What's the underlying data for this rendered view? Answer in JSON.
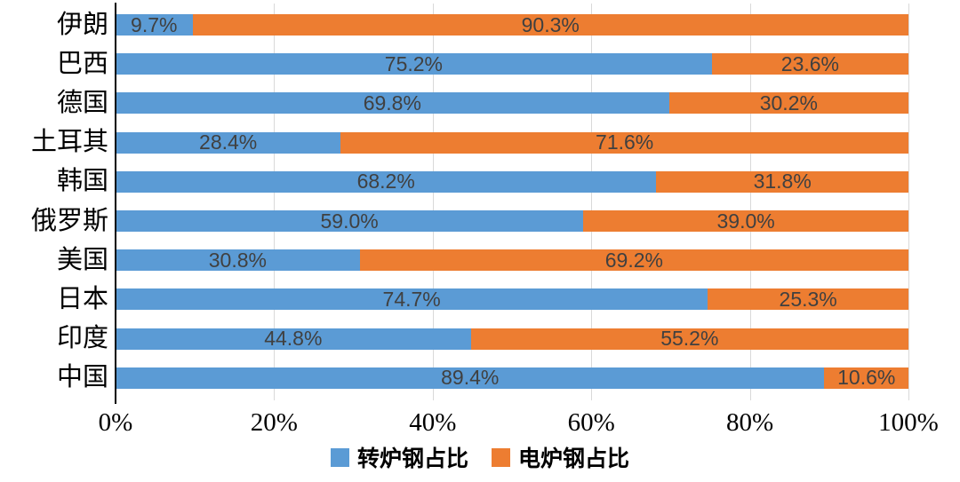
{
  "colors": {
    "converter_blue": "#5B9BD5",
    "electric_orange": "#ED7D31",
    "data_label": "#404040",
    "gridline": "#D9D9D9",
    "axis_line": "#000000"
  },
  "chart_data": {
    "type": "bar",
    "orientation": "horizontal",
    "stacked": true,
    "title": "",
    "xlabel": "",
    "ylabel": "",
    "xlim": [
      0,
      100
    ],
    "x_ticks": [
      "0%",
      "20%",
      "40%",
      "60%",
      "80%",
      "100%"
    ],
    "grid": true,
    "legend_position": "bottom",
    "categories": [
      "伊朗",
      "巴西",
      "德国",
      "土耳其",
      "韩国",
      "俄罗斯",
      "美国",
      "日本",
      "印度",
      "中国"
    ],
    "series": [
      {
        "name": "转炉钢占比",
        "color": "#5B9BD5",
        "values": [
          9.7,
          75.2,
          69.8,
          28.4,
          68.2,
          59.0,
          30.8,
          74.7,
          44.8,
          89.4
        ],
        "labels": [
          "9.7%",
          "75.2%",
          "69.8%",
          "28.4%",
          "68.2%",
          "59.0%",
          "30.8%",
          "74.7%",
          "44.8%",
          "89.4%"
        ]
      },
      {
        "name": "电炉钢占比",
        "color": "#ED7D31",
        "values": [
          90.3,
          23.6,
          30.2,
          71.6,
          31.8,
          39.0,
          69.2,
          25.3,
          55.2,
          10.6
        ],
        "labels": [
          "90.3%",
          "23.6%",
          "30.2%",
          "71.6%",
          "31.8%",
          "39.0%",
          "69.2%",
          "25.3%",
          "55.2%",
          "10.6%"
        ]
      }
    ]
  }
}
